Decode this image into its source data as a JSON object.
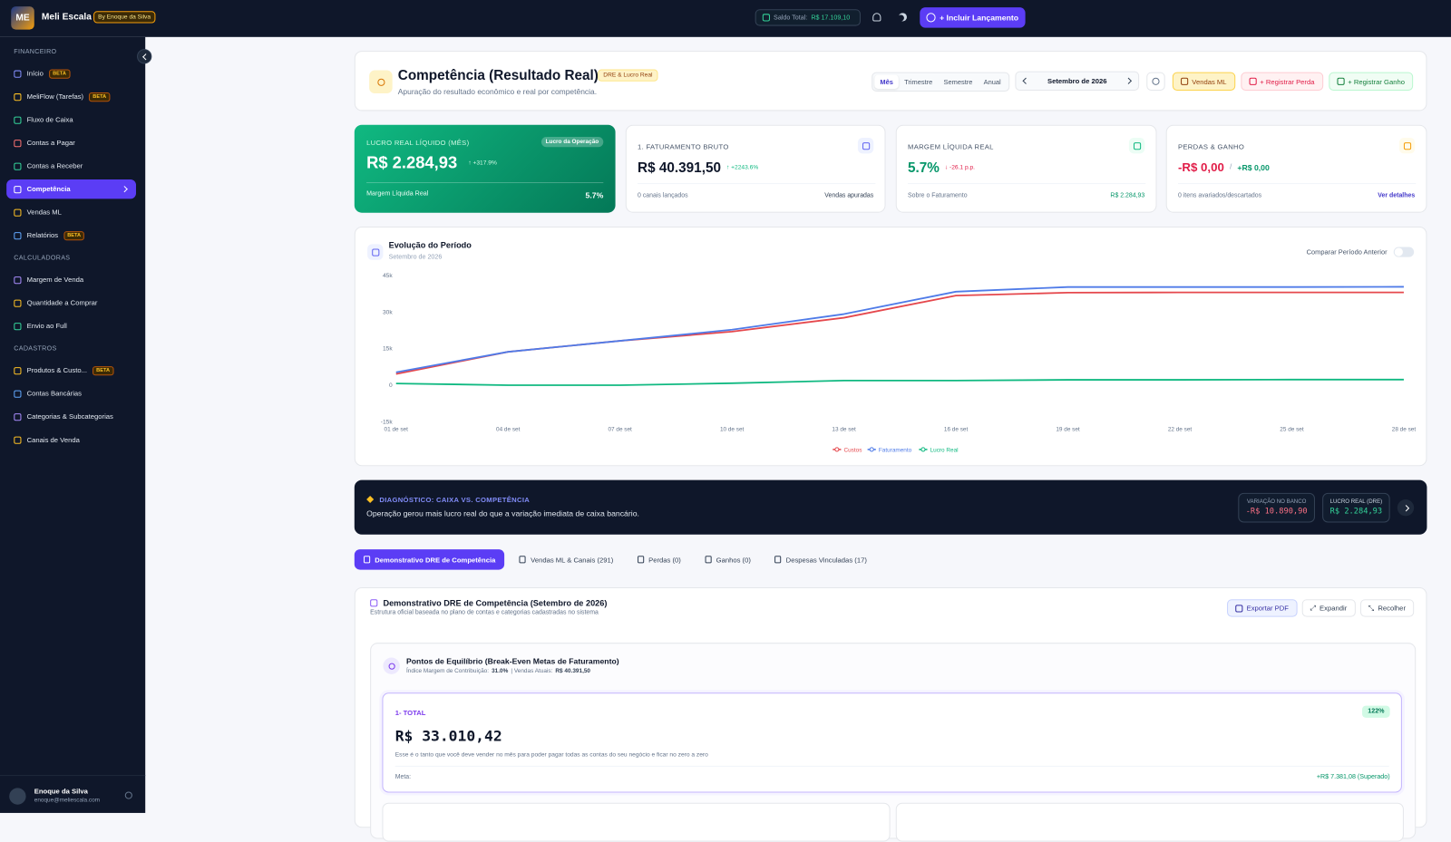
{
  "topbar": {
    "logo_mark": "ME",
    "brand": "Meli Escala",
    "byline": "By Enoque da Silva",
    "balance_label": "Saldo Total:",
    "balance_value": "R$ 17.109,10",
    "cta": "+ Incluir Lançamento"
  },
  "sidebar": {
    "sections": [
      {
        "title": "FINANCEIRO",
        "items": [
          {
            "label": "Início",
            "badge": "BETA",
            "color": "#818cf8"
          },
          {
            "label": "MeliFlow (Tarefas)",
            "badge": "BETA",
            "color": "#fbbf24"
          },
          {
            "label": "Fluxo de Caixa",
            "color": "#34d399"
          },
          {
            "label": "Contas a Pagar",
            "color": "#f87171"
          },
          {
            "label": "Contas a Receber",
            "color": "#34d399"
          },
          {
            "label": "Competência",
            "color": "#ffffff",
            "active": true
          },
          {
            "label": "Vendas ML",
            "color": "#fbbf24"
          },
          {
            "label": "Relatórios",
            "badge": "BETA",
            "color": "#60a5fa"
          }
        ]
      },
      {
        "title": "CALCULADORAS",
        "items": [
          {
            "label": "Margem de Venda",
            "color": "#a78bfa"
          },
          {
            "label": "Quantidade a Comprar",
            "color": "#fbbf24"
          },
          {
            "label": "Envio ao Full",
            "color": "#34d399"
          }
        ]
      },
      {
        "title": "CADASTROS",
        "items": [
          {
            "label": "Produtos & Custo...",
            "badge": "BETA",
            "color": "#fbbf24"
          },
          {
            "label": "Contas Bancárias",
            "color": "#60a5fa"
          },
          {
            "label": "Categorias & Subcategorias",
            "color": "#a78bfa"
          },
          {
            "label": "Canais de Venda",
            "color": "#fbbf24"
          }
        ]
      }
    ],
    "user": {
      "name": "Enoque da Silva",
      "email": "enoque@meliescala.com"
    }
  },
  "header": {
    "title": "Competência (Resultado Real)",
    "badge": "DRE & Lucro Real",
    "subtitle": "Apuração do resultado econômico e real por competência.",
    "periods": [
      "Mês",
      "Trimestre",
      "Semestre",
      "Anual"
    ],
    "period_label": "Setembro de 2026",
    "actions": [
      "Vendas ML",
      "+ Registrar Perda",
      "+ Registrar Ganho"
    ]
  },
  "kpis": {
    "profit": {
      "title": "LUCRO REAL LÍQUIDO (MÊS)",
      "badge": "Lucro da Operação",
      "value": "R$ 2.284,93",
      "change": "↑ +317.9%",
      "foot_label": "Margem Líquida Real",
      "foot_value": "5.7%"
    },
    "revenue": {
      "title": "1. FATURAMENTO BRUTO",
      "value": "R$ 40.391,50",
      "change": "↑ +2243.6%",
      "foot_label": "0 canais lançados",
      "foot_value": "Vendas apuradas"
    },
    "margin": {
      "title": "MARGEM LÍQUIDA REAL",
      "value": "5.7%",
      "change": "↓ -26.1 p.p.",
      "foot_label": "Sobre o Faturamento",
      "foot_value": "R$ 2.284,93"
    },
    "losses": {
      "title": "PERDAS & GANHO",
      "value": "-R$ 0,00",
      "separator": "/",
      "value2": "+R$ 0,00",
      "foot_label": "0 itens avariados/descartados",
      "foot_value": "Ver detalhes"
    }
  },
  "chart_controls": {
    "compare_label": "Comparar Período Anterior"
  },
  "chart_data": {
    "type": "line",
    "title": "Evolução do Período",
    "subtitle": "Setembro de 2026",
    "categories": [
      "01 de set",
      "04 de set",
      "07 de set",
      "10 de set",
      "13 de set",
      "16 de set",
      "19 de set",
      "22 de set",
      "25 de set",
      "28 de set"
    ],
    "series": [
      {
        "name": "Custos",
        "color": "#e5484d",
        "values": [
          4600,
          13700,
          18200,
          22000,
          27700,
          36800,
          38000,
          38100,
          38100,
          38100
        ]
      },
      {
        "name": "Faturamento",
        "color": "#4f7be8",
        "values": [
          5300,
          13700,
          18200,
          22800,
          29200,
          38400,
          40300,
          40300,
          40300,
          40400
        ]
      },
      {
        "name": "Lucro Real",
        "color": "#10b981",
        "values": [
          700,
          0,
          0,
          800,
          1900,
          1900,
          2200,
          2200,
          2300,
          2300
        ]
      }
    ],
    "ylim": [
      -15000,
      45000
    ],
    "yticks": [
      {
        "value": -15000,
        "label": "-15k"
      },
      0,
      {
        "value": 15000,
        "label": "15k"
      },
      {
        "value": 30000,
        "label": "30k"
      },
      {
        "value": 45000,
        "label": "45k"
      }
    ],
    "grid": false,
    "legend": "bottom"
  },
  "diagnostic": {
    "title": "DIAGNÓSTICO: CAIXA VS. COMPETÊNCIA",
    "text": "Operação gerou mais lucro real do que a variação imediata de caixa bancário.",
    "bank_label": "VARIAÇÃO NO BANCO",
    "bank_value": "-R$ 10.890,90",
    "dre_label": "LUCRO REAL (DRE)",
    "dre_value": "R$ 2.284,93"
  },
  "tabs": [
    {
      "label": "Demonstrativo DRE de Competência",
      "active": true
    },
    {
      "label": "Vendas ML & Canais (291)"
    },
    {
      "label": "Perdas (0)"
    },
    {
      "label": "Ganhos (0)"
    },
    {
      "label": "Despesas Vinculadas (17)"
    }
  ],
  "dre": {
    "title": "Demonstrativo DRE de Competência (Setembro de 2026)",
    "subtitle": "Estrutura oficial baseada no plano de contas e categorias cadastradas no sistema",
    "actions": [
      "Exportar PDF",
      "Expandir",
      "Recolher"
    ],
    "breakeven": {
      "title": "Pontos de Equilíbrio (Break-Even Metas de Faturamento)",
      "index_label": "Índice Margem de Contribuição:",
      "index_value": "31.0%",
      "sales_label": "| Vendas Atuais:",
      "sales_value": "R$ 40.391,50",
      "total": {
        "title": "1- TOTAL",
        "badge": "122%",
        "value": "R$ 33.010,42",
        "description": "Esse é o tanto que você deve vender no mês para poder pagar todas as contas do seu negócio e ficar no zero a zero",
        "goal_label": "Meta:",
        "goal_value": "+R$ 7.381,08 (Superado)"
      }
    }
  }
}
